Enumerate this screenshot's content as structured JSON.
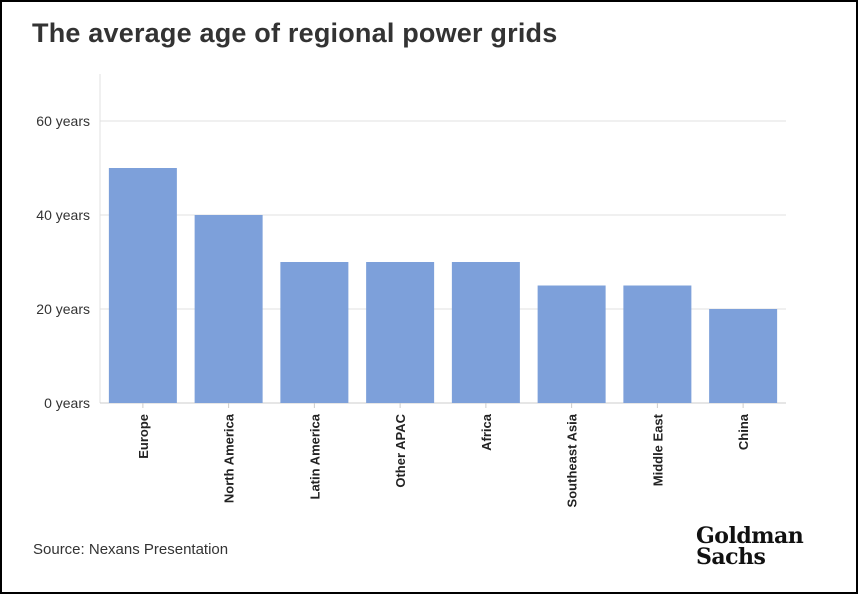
{
  "title": "The average age of regional power grids",
  "source": "Source: Nexans Presentation",
  "logo": {
    "line1": "Goldman",
    "line2": "Sachs"
  },
  "colors": {
    "bar": "#7da0da",
    "grid": "#e0e0e0",
    "text": "#333333",
    "axis": "#cccccc"
  },
  "chart_data": {
    "type": "bar",
    "categories": [
      "Europe",
      "North America",
      "Latin America",
      "Other APAC",
      "Africa",
      "Southeast Asia",
      "Middle East",
      "China"
    ],
    "values": [
      50,
      40,
      30,
      30,
      30,
      25,
      25,
      20
    ],
    "unit": "years",
    "yticks": [
      0,
      20,
      40,
      60
    ],
    "ytick_labels": [
      "0 years",
      "20 years",
      "40 years",
      "60 years"
    ],
    "ylim": [
      0,
      70
    ],
    "grid": true,
    "xlabel": "",
    "ylabel": ""
  }
}
